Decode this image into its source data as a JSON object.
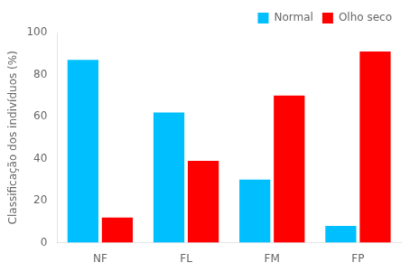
{
  "chart_data": {
    "type": "bar",
    "categories": [
      "NF",
      "FL",
      "FM",
      "FP"
    ],
    "series": [
      {
        "name": "Normal",
        "color": "#00BFFF",
        "values": [
          87,
          62,
          30,
          8
        ]
      },
      {
        "name": "Olho seco",
        "color": "#FF0000",
        "values": [
          12,
          39,
          70,
          91
        ]
      }
    ],
    "ylabel": "Classificação dos indivíduos (%)",
    "ylim": [
      0,
      100
    ],
    "yticks": [
      0,
      20,
      40,
      60,
      80,
      100
    ],
    "grid": false,
    "legend": "upper right"
  }
}
